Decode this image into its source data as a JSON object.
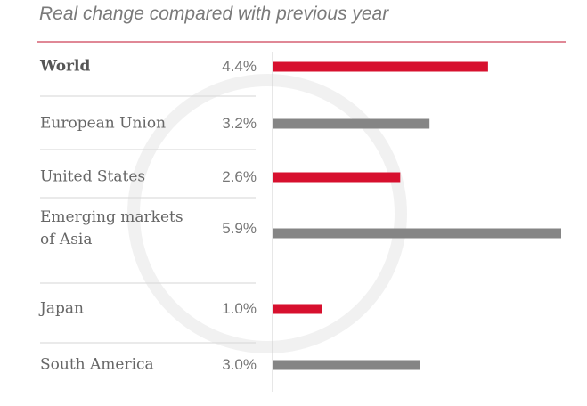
{
  "chart_data": {
    "type": "bar",
    "orientation": "horizontal",
    "title": "Real change compared with previous year",
    "categories": [
      "World",
      "European Union",
      "United States",
      "Emerging markets of Asia",
      "Japan",
      "South America"
    ],
    "values": [
      4.4,
      3.2,
      2.6,
      5.9,
      1.0,
      3.0
    ],
    "value_labels": [
      "4.4%",
      "3.2%",
      "2.6%",
      "5.9%",
      "1.0%",
      "3.0%"
    ],
    "colors": [
      "#d7102e",
      "#858585",
      "#d7102e",
      "#858585",
      "#d7102e",
      "#858585"
    ]
  }
}
